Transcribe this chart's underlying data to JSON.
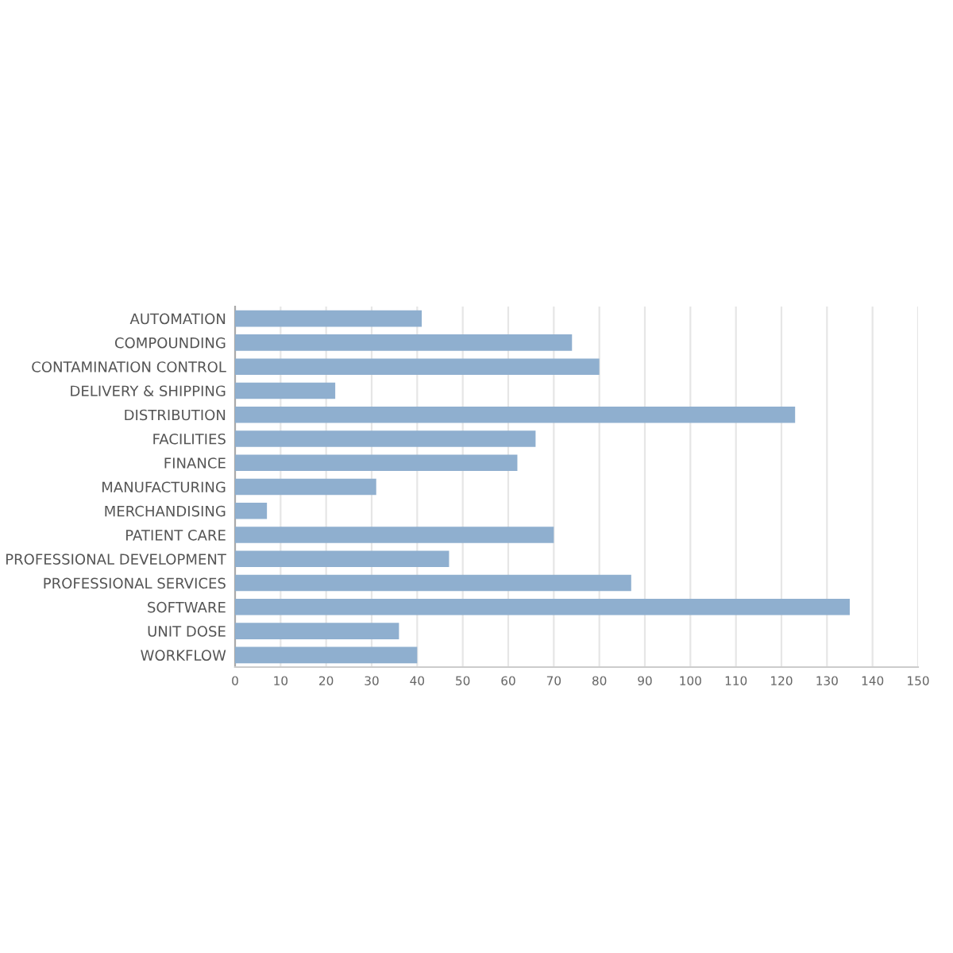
{
  "chart_data": {
    "type": "bar",
    "orientation": "horizontal",
    "categories": [
      "AUTOMATION",
      "COMPOUNDING",
      "CONTAMINATION CONTROL",
      "DELIVERY & SHIPPING",
      "DISTRIBUTION",
      "FACILITIES",
      "FINANCE",
      "MANUFACTURING",
      "MERCHANDISING",
      "PATIENT CARE",
      "PROFESSIONAL DEVELOPMENT",
      "PROFESSIONAL SERVICES",
      "SOFTWARE",
      "UNIT DOSE",
      "WORKFLOW"
    ],
    "values": [
      41,
      74,
      80,
      22,
      123,
      66,
      62,
      31,
      7,
      70,
      47,
      87,
      135,
      36,
      40
    ],
    "color": "#8fafcf",
    "xlim": [
      0,
      150
    ],
    "xticks": [
      0,
      10,
      20,
      30,
      40,
      50,
      60,
      70,
      80,
      90,
      100,
      110,
      120,
      130,
      140,
      150
    ],
    "grid": "x",
    "legend": false
  }
}
